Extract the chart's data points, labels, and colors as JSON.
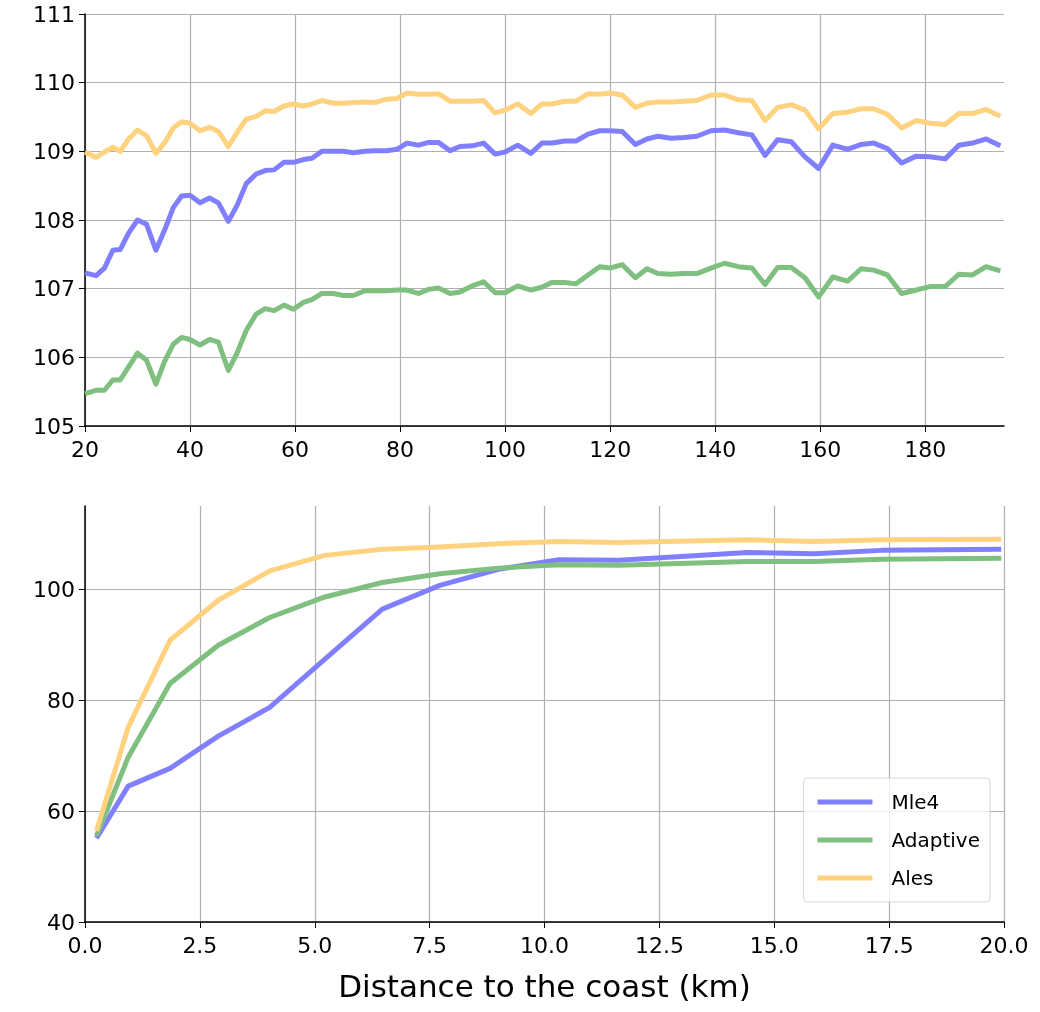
{
  "chart_data": [
    {
      "type": "line",
      "marker": "none",
      "grid": true,
      "legend": false,
      "x": [
        20,
        22.1,
        23.7,
        25.3,
        26.7,
        28.3,
        30,
        31.7,
        33.5,
        35.2,
        36.8,
        38.4,
        40,
        41.9,
        43.7,
        45.4,
        47.3,
        49,
        50.7,
        52.6,
        54.3,
        56,
        57.9,
        59.7,
        61.6,
        63.2,
        65.1,
        67.3,
        69.2,
        71.1,
        73.3,
        75.2,
        77.4,
        79.4,
        81.3,
        83.5,
        85.4,
        87.3,
        89.5,
        91.4,
        93.7,
        95.9,
        98.1,
        100,
        102.4,
        104.9,
        107,
        108.9,
        111.4,
        113.5,
        115.8,
        118,
        120,
        122.3,
        124.8,
        127,
        129.1,
        131.6,
        134,
        136.5,
        139.2,
        141.8,
        144.4,
        147,
        149.5,
        151.9,
        154.5,
        157.1,
        159.7,
        162.4,
        165.2,
        167.8,
        170.2,
        172.8,
        175.5,
        178.3,
        180.9,
        183.8,
        186.4,
        189,
        191.6,
        194.3
      ],
      "series": [
        {
          "color": "#7f7fff",
          "values": [
            107.23,
            107.19,
            107.3,
            107.56,
            107.57,
            107.81,
            108.0,
            107.94,
            107.56,
            107.86,
            108.18,
            108.35,
            108.36,
            108.25,
            108.32,
            108.25,
            107.98,
            108.22,
            108.53,
            108.67,
            108.72,
            108.73,
            108.84,
            108.84,
            108.88,
            108.9,
            109.0,
            109.0,
            109.0,
            108.98,
            109.0,
            109.01,
            109.01,
            109.03,
            109.12,
            109.09,
            109.13,
            109.13,
            109.01,
            109.07,
            109.08,
            109.12,
            108.96,
            108.99,
            109.09,
            108.97,
            109.12,
            109.12,
            109.15,
            109.15,
            109.25,
            109.3,
            109.3,
            109.29,
            109.1,
            109.18,
            109.22,
            109.19,
            109.2,
            109.22,
            109.3,
            109.31,
            109.27,
            109.24,
            108.94,
            109.17,
            109.14,
            108.92,
            108.75,
            109.09,
            109.03,
            109.1,
            109.12,
            109.04,
            108.83,
            108.93,
            108.92,
            108.89,
            109.09,
            109.12,
            109.18,
            109.08
          ]
        },
        {
          "color": "#7fbf7f",
          "values": [
            105.47,
            105.52,
            105.52,
            105.67,
            105.67,
            105.86,
            106.06,
            105.96,
            105.61,
            105.95,
            106.19,
            106.29,
            106.26,
            106.18,
            106.26,
            106.22,
            105.81,
            106.07,
            106.39,
            106.63,
            106.71,
            106.68,
            106.76,
            106.7,
            106.8,
            106.84,
            106.93,
            106.93,
            106.9,
            106.9,
            106.97,
            106.97,
            106.97,
            106.98,
            106.98,
            106.93,
            106.99,
            107.01,
            106.93,
            106.95,
            107.04,
            107.1,
            106.94,
            106.94,
            107.04,
            106.98,
            107.02,
            107.09,
            107.09,
            107.07,
            107.2,
            107.32,
            107.3,
            107.35,
            107.16,
            107.29,
            107.22,
            107.21,
            107.22,
            107.22,
            107.3,
            107.37,
            107.32,
            107.3,
            107.06,
            107.31,
            107.31,
            107.16,
            106.88,
            107.17,
            107.11,
            107.29,
            107.27,
            107.2,
            106.93,
            106.98,
            107.03,
            107.03,
            107.21,
            107.2,
            107.32,
            107.26
          ]
        },
        {
          "color": "#ffd27f",
          "values": [
            108.99,
            108.91,
            108.99,
            109.06,
            109.0,
            109.18,
            109.31,
            109.23,
            108.97,
            109.13,
            109.34,
            109.43,
            109.41,
            109.3,
            109.35,
            109.29,
            109.07,
            109.28,
            109.47,
            109.51,
            109.59,
            109.58,
            109.66,
            109.69,
            109.66,
            109.69,
            109.74,
            109.7,
            109.7,
            109.71,
            109.72,
            109.71,
            109.76,
            109.77,
            109.85,
            109.83,
            109.83,
            109.84,
            109.73,
            109.73,
            109.73,
            109.74,
            109.56,
            109.6,
            109.69,
            109.55,
            109.69,
            109.69,
            109.73,
            109.73,
            109.84,
            109.83,
            109.85,
            109.82,
            109.64,
            109.7,
            109.72,
            109.72,
            109.73,
            109.74,
            109.82,
            109.82,
            109.75,
            109.74,
            109.45,
            109.64,
            109.68,
            109.6,
            109.33,
            109.55,
            109.57,
            109.62,
            109.62,
            109.54,
            109.34,
            109.45,
            109.41,
            109.39,
            109.55,
            109.55,
            109.61,
            109.51
          ]
        }
      ],
      "xlim": [
        20,
        195
      ],
      "xticks": [
        20,
        40,
        60,
        80,
        100,
        120,
        140,
        160,
        180
      ],
      "ylim": [
        105,
        111
      ],
      "yticks": [
        105,
        106,
        107,
        108,
        109,
        110,
        111
      ]
    },
    {
      "type": "line",
      "marker": "none",
      "grid": true,
      "legend": "bottom right",
      "xlabel": "Distance to the coast (km)",
      "x": [
        0.25,
        0.94,
        1.85,
        2.9,
        4.02,
        5.22,
        6.47,
        7.72,
        9.0,
        10.31,
        11.62,
        14.42,
        15.87,
        17.33,
        19.94
      ],
      "series": [
        {
          "name": "Mle4",
          "color": "#7f7fff",
          "values": [
            55.1,
            64.5,
            67.7,
            73.5,
            78.7,
            87.4,
            96.4,
            100.7,
            103.6,
            105.3,
            105.2,
            106.6,
            106.4,
            107.0,
            107.2
          ]
        },
        {
          "name": "Adaptive",
          "color": "#7fbf7f",
          "values": [
            55.5,
            69.7,
            83.0,
            89.9,
            94.9,
            98.6,
            101.2,
            102.8,
            103.8,
            104.4,
            104.3,
            105.0,
            105.0,
            105.4,
            105.6
          ]
        },
        {
          "name": "Ales",
          "color": "#ffd27f",
          "values": [
            56.4,
            75.1,
            90.8,
            98.0,
            103.3,
            106.1,
            107.2,
            107.6,
            108.2,
            108.6,
            108.4,
            108.9,
            108.6,
            108.9,
            109.0
          ]
        }
      ],
      "xlim": [
        0,
        20
      ],
      "xticks": [
        {
          "value": 0,
          "label": "0.0"
        },
        {
          "value": 2.5,
          "label": "2.5"
        },
        {
          "value": 5,
          "label": "5.0"
        },
        {
          "value": 7.5,
          "label": "7.5"
        },
        {
          "value": 10,
          "label": "10.0"
        },
        {
          "value": 12.5,
          "label": "12.5"
        },
        {
          "value": 15,
          "label": "15.0"
        },
        {
          "value": 17.5,
          "label": "17.5"
        },
        {
          "value": 20,
          "label": "20.0"
        }
      ],
      "ylim": [
        40,
        115
      ],
      "yticks": [
        40,
        60,
        80,
        100
      ]
    }
  ]
}
